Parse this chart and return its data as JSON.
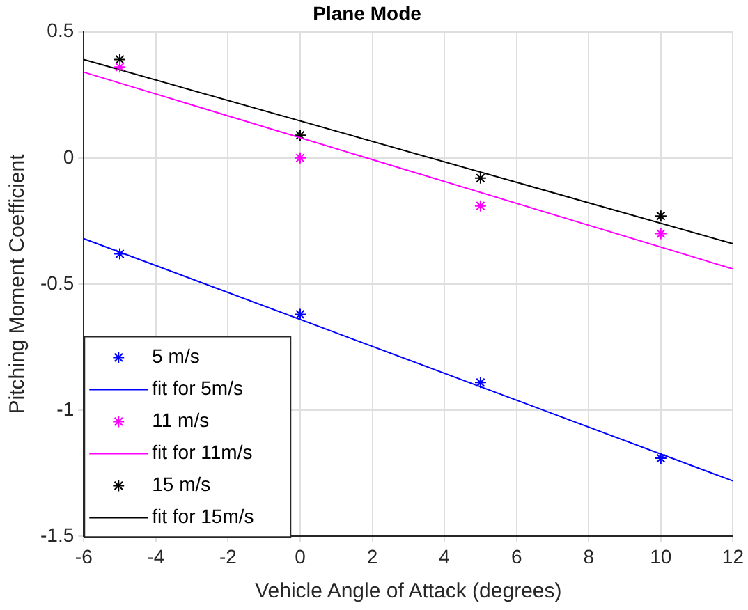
{
  "chart_data": {
    "type": "scatter",
    "title": "Plane Mode",
    "xlabel": "Vehicle Angle of Attack (degrees)",
    "ylabel": "Pitching Moment Coefficient",
    "xlim": [
      -6,
      12
    ],
    "xticks": [
      -6,
      -4,
      -2,
      0,
      2,
      4,
      6,
      8,
      10,
      12
    ],
    "ylim": [
      -1.5,
      0.5
    ],
    "yticks": [
      -1.5,
      -1,
      -0.5,
      0,
      0.5
    ],
    "grid": true,
    "legend": "bottom left",
    "series": [
      {
        "name": "5 m/s",
        "marker": "cross",
        "color": "#0000ff",
        "x": [
          -5,
          0,
          5,
          10
        ],
        "values": [
          -0.38,
          -0.62,
          -0.89,
          -1.19
        ]
      },
      {
        "name": "fit for 5m/s",
        "type": "line",
        "marker": "none",
        "color": "#0000ff",
        "x": [
          -6,
          12
        ],
        "values": [
          -0.32,
          -1.28
        ]
      },
      {
        "name": "11 m/s",
        "marker": "cross",
        "color": "#ff00ff",
        "x": [
          -5,
          0,
          5,
          10
        ],
        "values": [
          0.36,
          0,
          -0.19,
          -0.3
        ]
      },
      {
        "name": "fit for 11m/s",
        "type": "line",
        "marker": "none",
        "color": "#ff00ff",
        "x": [
          -6,
          12
        ],
        "values": [
          0.34,
          -0.44
        ]
      },
      {
        "name": "15 m/s",
        "marker": "cross",
        "color": "#000000",
        "x": [
          -5,
          0,
          5,
          10
        ],
        "values": [
          0.39,
          0.09,
          -0.08,
          -0.23
        ]
      },
      {
        "name": "fit for 15m/s",
        "type": "line",
        "marker": "none",
        "color": "#000000",
        "x": [
          -6,
          12
        ],
        "values": [
          0.39,
          -0.34
        ]
      }
    ]
  }
}
